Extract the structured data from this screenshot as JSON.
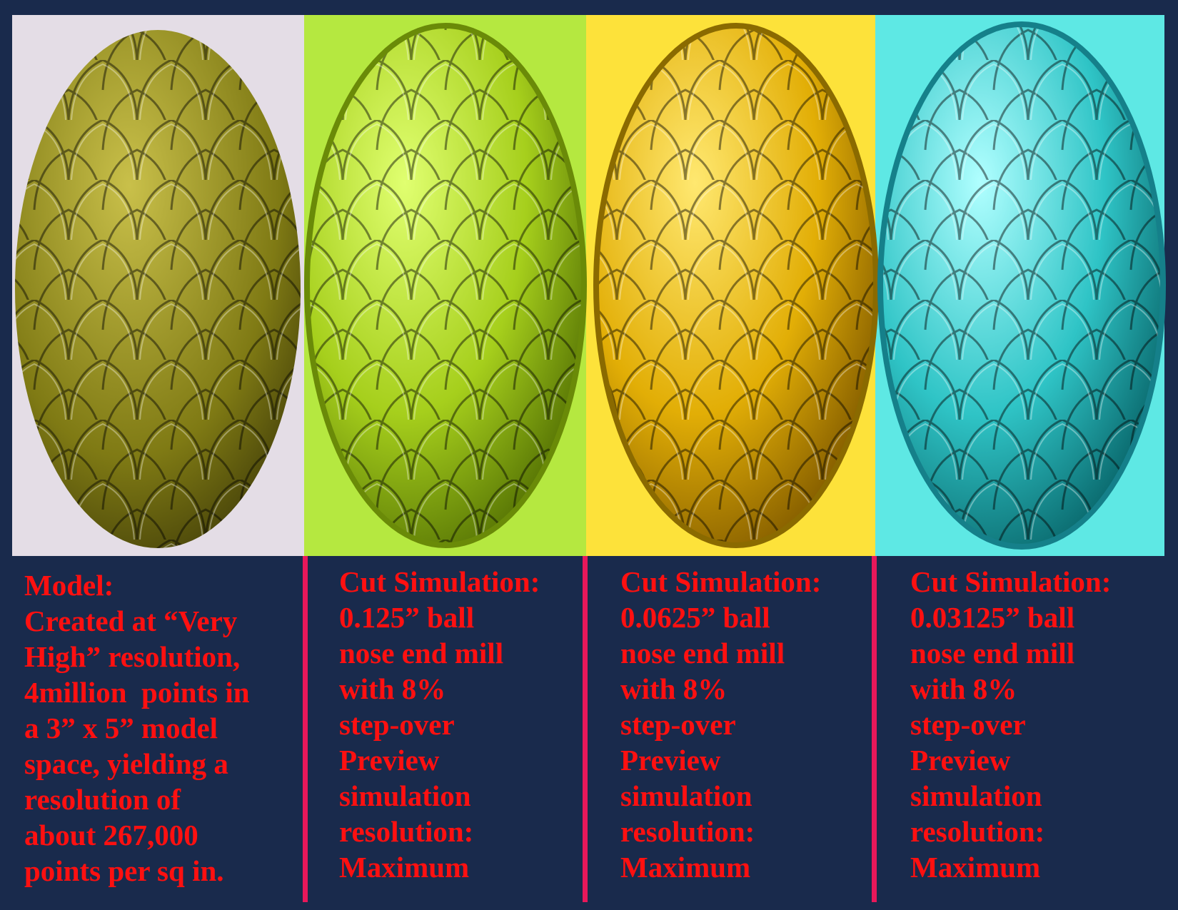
{
  "panels": [
    {
      "lines": [
        "Model:",
        "Created at “Very",
        "High” resolution,",
        "4million  points in",
        "a 3” x 5” model",
        "space, yielding a",
        "resolution of",
        "about 267,000",
        "points per sq in."
      ]
    },
    {
      "lines": [
        "Cut Simulation:",
        "0.125” ball",
        "nose end mill",
        "with 8%",
        "step-over",
        "Preview",
        "simulation",
        "resolution:",
        "Maximum"
      ]
    },
    {
      "lines": [
        "Cut Simulation:",
        "0.0625” ball",
        "nose end mill",
        "with 8%",
        "step-over",
        "Preview",
        "simulation",
        "resolution:",
        "Maximum"
      ]
    },
    {
      "lines": [
        "Cut Simulation:",
        "0.03125” ball",
        "nose end mill",
        "with 8%",
        "step-over",
        "Preview",
        "simulation",
        "resolution:",
        "Maximum"
      ]
    }
  ]
}
